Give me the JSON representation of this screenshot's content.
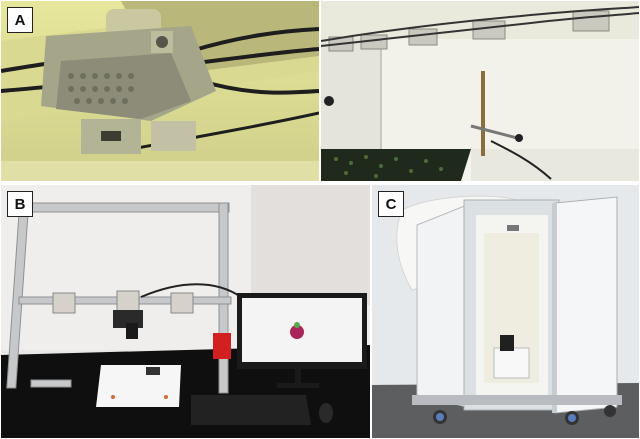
{
  "panels": [
    {
      "id": "A",
      "label": "A"
    },
    {
      "id": "B",
      "label": "B"
    },
    {
      "id": "C",
      "label": "C"
    }
  ]
}
